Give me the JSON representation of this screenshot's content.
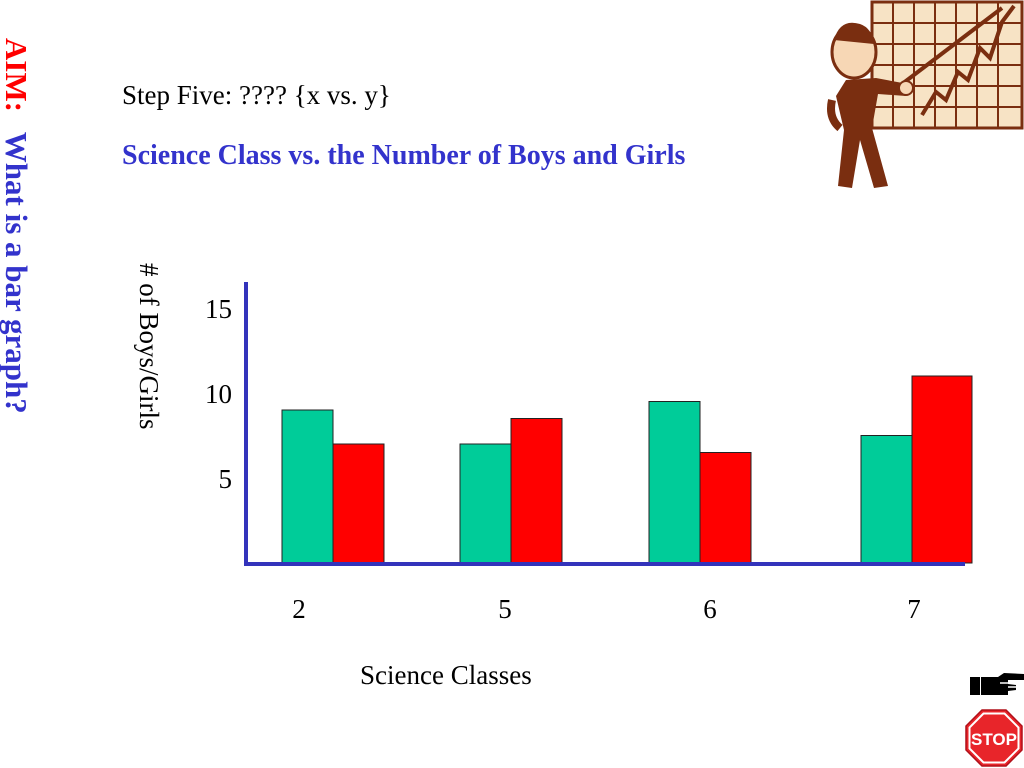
{
  "slide": {
    "aim_label": "AIM:",
    "aim_question": "What is a bar graph?",
    "step_text": "Step Five:  ????    {x vs. y}",
    "subtitle": "Science Class  vs.  the Number of Boys and Girls"
  },
  "icons": {
    "teacher": "teacher-pointing-at-chart-clipart",
    "hand": "pointing-hand-icon",
    "stop": "stop-sign-icon",
    "stop_text": "STOP"
  },
  "colors": {
    "aim": "#ff0000",
    "question": "#3333cc",
    "subtitle": "#3333cc",
    "axis": "#3333bb",
    "series_1": "#00cc99",
    "series_2": "#ff0000"
  },
  "chart_data": {
    "type": "bar",
    "title": "",
    "xlabel": "Science Classes",
    "ylabel": "# of  Boys/Girls",
    "categories": [
      "2",
      "5",
      "6",
      "7"
    ],
    "series": [
      {
        "values": [
          9,
          7,
          9.5,
          7.5
        ],
        "color": "#00cc99"
      },
      {
        "values": [
          7,
          8.5,
          6.5,
          11
        ],
        "color": "#ff0000"
      }
    ],
    "yticks": [
      5,
      10,
      15
    ],
    "ylim": [
      0,
      16
    ],
    "grid": false,
    "legend": "none"
  }
}
